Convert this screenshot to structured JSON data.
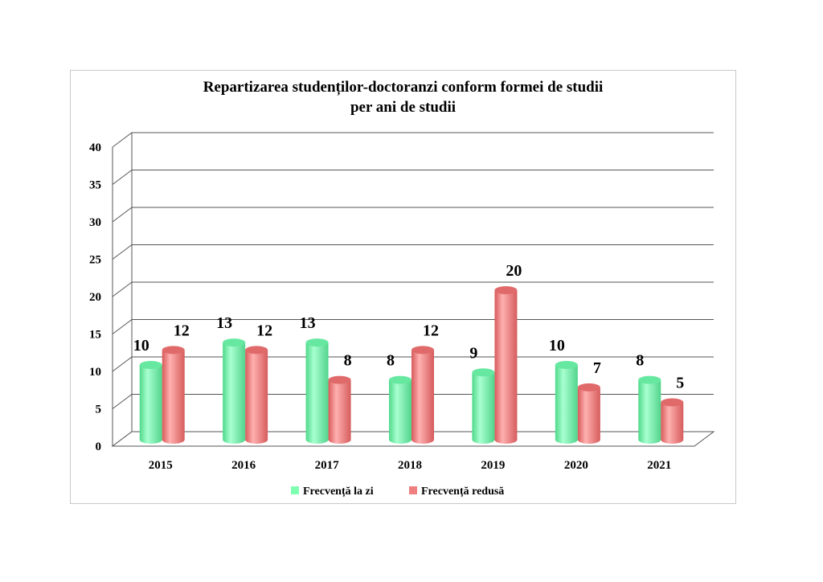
{
  "chart_data": {
    "type": "bar",
    "title": "Repartizarea studenților-doctoranzi conform formei de studii",
    "subtitle": "per ani de studii",
    "categories": [
      "2015",
      "2016",
      "2017",
      "2018",
      "2019",
      "2020",
      "2021"
    ],
    "series": [
      {
        "name": "Frecvență la zi",
        "values": [
          10,
          13,
          13,
          8,
          9,
          10,
          8
        ],
        "color": "#7FFFB0"
      },
      {
        "name": "Frecvență redusă",
        "values": [
          12,
          12,
          8,
          12,
          20,
          7,
          5
        ],
        "color": "#F08080"
      }
    ],
    "ylim": [
      0,
      40
    ],
    "yticks": [
      0,
      5,
      10,
      15,
      20,
      25,
      30,
      35,
      40
    ],
    "xlabel": "",
    "ylabel": "",
    "grid": true,
    "legend_position": "bottom",
    "style": "3d-cylinder"
  }
}
